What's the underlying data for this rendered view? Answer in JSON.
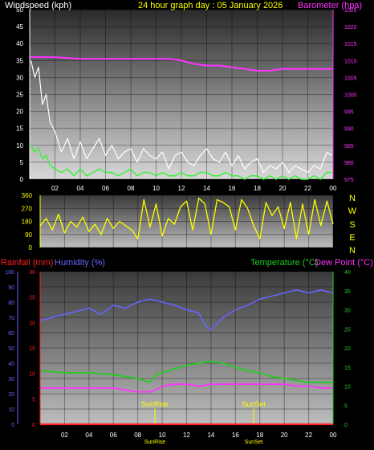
{
  "chart_data": [
    {
      "type": "line",
      "title": "24 hour graph day : 05 January 2026",
      "ylabel": "Windspeed (kph)",
      "y2label": "Barometer (hpa)",
      "ylim": [
        0,
        50
      ],
      "y2lim": [
        975,
        1025
      ],
      "yticks": [
        0,
        5,
        10,
        15,
        20,
        25,
        30,
        35,
        40,
        45,
        50
      ],
      "y2ticks": [
        975,
        980,
        985,
        990,
        995,
        1000,
        1005,
        1010,
        1015,
        1020,
        1025
      ],
      "xlim": [
        0,
        24
      ],
      "xticks": [
        "02",
        "04",
        "06",
        "08",
        "10",
        "12",
        "14",
        "16",
        "18",
        "20",
        "22",
        "00"
      ],
      "grid": true,
      "colors": {
        "gust": "#ffffff",
        "wind": "#44ee44",
        "barometer": "#ff33ff",
        "title": "#ffff00",
        "left_axis": "#ffffff"
      },
      "series": [
        {
          "name": "Gust",
          "x": [
            0.1,
            0.4,
            0.7,
            1.0,
            1.3,
            1.6,
            2,
            2.5,
            3,
            3.5,
            4,
            4.5,
            5,
            5.5,
            6,
            6.5,
            7,
            7.5,
            8,
            8.5,
            9,
            9.5,
            10,
            10.5,
            11,
            11.5,
            12,
            12.5,
            13,
            13.5,
            14,
            14.5,
            15,
            15.5,
            16,
            16.5,
            17,
            17.5,
            18,
            18.5,
            19,
            19.5,
            20,
            20.5,
            21,
            21.5,
            22,
            22.5,
            23,
            23.5,
            23.9
          ],
          "values": [
            35,
            30,
            33,
            22,
            25,
            17,
            14,
            8,
            12,
            6,
            11,
            6,
            9,
            12,
            7,
            10,
            6,
            8,
            9,
            5,
            9,
            7,
            6,
            8,
            3,
            7,
            8,
            5,
            4,
            7,
            9,
            6,
            5,
            8,
            4,
            7,
            3,
            5,
            6,
            2,
            4,
            3,
            5,
            2,
            4,
            3,
            2,
            4,
            3,
            8,
            7
          ]
        },
        {
          "name": "Wind",
          "x": [
            0.1,
            0.4,
            0.7,
            1.0,
            1.3,
            1.6,
            2,
            2.5,
            3,
            3.5,
            4,
            4.5,
            5,
            5.5,
            6,
            6.5,
            7,
            7.5,
            8,
            8.5,
            9,
            9.5,
            10,
            10.5,
            11,
            11.5,
            12,
            12.5,
            13,
            13.5,
            14,
            14.5,
            15,
            15.5,
            16,
            16.5,
            17,
            17.5,
            18,
            18.5,
            19,
            19.5,
            20,
            20.5,
            21,
            21.5,
            22,
            22.5,
            23,
            23.5,
            23.9
          ],
          "values": [
            10,
            8,
            9,
            6,
            7,
            4,
            3,
            2,
            3,
            1,
            3,
            1,
            2,
            3,
            2,
            2,
            1,
            2,
            3,
            1,
            2,
            2,
            1,
            2,
            1,
            1,
            2,
            1,
            1,
            2,
            2,
            1,
            1,
            2,
            1,
            1,
            0,
            1,
            1,
            0,
            1,
            0,
            1,
            0,
            1,
            0,
            0,
            1,
            0,
            2,
            2
          ]
        },
        {
          "name": "Barometer",
          "axis": "right",
          "x": [
            0,
            2,
            4,
            6,
            8,
            10,
            11,
            12,
            13,
            14,
            15,
            16,
            17,
            18,
            19,
            20,
            22,
            24
          ],
          "values": [
            1011,
            1011,
            1010.5,
            1010.5,
            1010.5,
            1010.5,
            1010.5,
            1010,
            1009,
            1008.5,
            1008.5,
            1008,
            1007.5,
            1007,
            1007,
            1007.5,
            1007.5,
            1007.5
          ]
        }
      ]
    },
    {
      "type": "line",
      "ylim": [
        0,
        360
      ],
      "yticks": [
        0,
        90,
        180,
        270,
        360
      ],
      "y2ticks": [
        "N",
        "W",
        "S",
        "E",
        "N"
      ],
      "xlim": [
        0,
        24
      ],
      "grid": true,
      "colors": {
        "direction": "#ffff00",
        "labels": "#ffff00"
      },
      "series": [
        {
          "name": "Wind direction",
          "x": [
            0,
            0.5,
            1,
            1.5,
            2,
            2.5,
            3,
            3.5,
            4,
            4.5,
            5,
            5.5,
            6,
            6.5,
            7,
            7.5,
            8,
            8.5,
            9,
            9.5,
            10,
            10.5,
            11,
            11.5,
            12,
            12.5,
            13,
            13.5,
            14,
            14.5,
            15,
            15.5,
            16,
            16.5,
            17,
            17.5,
            18,
            18.5,
            19,
            19.5,
            20,
            20.5,
            21,
            21.5,
            22,
            22.5,
            23,
            23.5,
            24
          ],
          "values": [
            150,
            200,
            120,
            230,
            100,
            180,
            140,
            210,
            110,
            160,
            90,
            200,
            130,
            180,
            150,
            120,
            60,
            330,
            140,
            300,
            80,
            200,
            160,
            280,
            320,
            120,
            340,
            300,
            90,
            330,
            310,
            280,
            120,
            330,
            270,
            150,
            60,
            310,
            220,
            280,
            130,
            310,
            60,
            300,
            90,
            330,
            150,
            320,
            160
          ]
        }
      ]
    },
    {
      "type": "line",
      "ylabel": "Rainfall (mm)",
      "ylabel2": "Humidity (%)",
      "y2label": "Temperature (°C)",
      "y2label2": "Dew Point (°C)",
      "ylim": [
        0,
        100
      ],
      "yticks": [
        0,
        10,
        20,
        30,
        40,
        50,
        60,
        70,
        80,
        90,
        100
      ],
      "rain_ticks": [
        0,
        5,
        10,
        15,
        20,
        25,
        30
      ],
      "y2lim": [
        0,
        40
      ],
      "y2ticks": [
        0,
        5,
        10,
        15,
        20,
        25,
        30,
        35,
        40
      ],
      "xlim": [
        0,
        24
      ],
      "xticks": [
        "02",
        "04",
        "06",
        "08",
        "10",
        "12",
        "14",
        "16",
        "18",
        "20",
        "22",
        "00"
      ],
      "grid": true,
      "annotations": [
        {
          "label": "SunRise",
          "x": 9.4
        },
        {
          "label": "SunSet",
          "x": 17.5
        }
      ],
      "colors": {
        "rain": "#ff2222",
        "humidity": "#6666ff",
        "temp": "#22cc22",
        "dew": "#ff33ff",
        "right_axis": "#22cc22"
      },
      "series": [
        {
          "name": "Rainfall",
          "axis": "rain",
          "x": [
            0,
            24
          ],
          "values": [
            0,
            0
          ]
        },
        {
          "name": "Humidity",
          "axis": "left",
          "x": [
            0,
            1,
            2,
            3,
            4,
            5,
            6,
            7,
            8,
            9,
            10,
            11,
            12,
            13,
            13.5,
            14,
            14.5,
            15,
            16,
            17,
            18,
            19,
            20,
            21,
            22,
            23,
            24
          ],
          "values": [
            68,
            70,
            72,
            74,
            76,
            72,
            78,
            76,
            80,
            82,
            80,
            78,
            75,
            73,
            65,
            62,
            66,
            70,
            75,
            78,
            82,
            84,
            86,
            88,
            86,
            88,
            86
          ]
        },
        {
          "name": "Temperature",
          "axis": "right",
          "x": [
            0,
            2,
            4,
            6,
            7,
            8,
            9,
            9.5,
            10,
            11,
            12,
            13,
            14,
            15,
            16,
            17,
            18,
            19,
            20,
            21,
            22,
            23,
            24
          ],
          "values": [
            14,
            13.5,
            13.5,
            13,
            12.5,
            12,
            11,
            13,
            13.5,
            14.5,
            15.5,
            16,
            16.5,
            16,
            15,
            14,
            13.5,
            12.5,
            12,
            11.5,
            11,
            11,
            11
          ]
        },
        {
          "name": "Dew Point",
          "axis": "right",
          "x": [
            0,
            2,
            4,
            6,
            7,
            8,
            9,
            9.5,
            10,
            11,
            12,
            13,
            14,
            15,
            16,
            17,
            18,
            19,
            20,
            21,
            22,
            23,
            24
          ],
          "values": [
            9.5,
            9.5,
            9.5,
            9.5,
            9,
            8.5,
            8.5,
            9,
            10,
            10.5,
            10.5,
            10,
            10.5,
            10.5,
            10.5,
            10.5,
            10.5,
            10.5,
            10.5,
            10,
            10,
            9.5,
            9.5
          ]
        }
      ]
    }
  ]
}
